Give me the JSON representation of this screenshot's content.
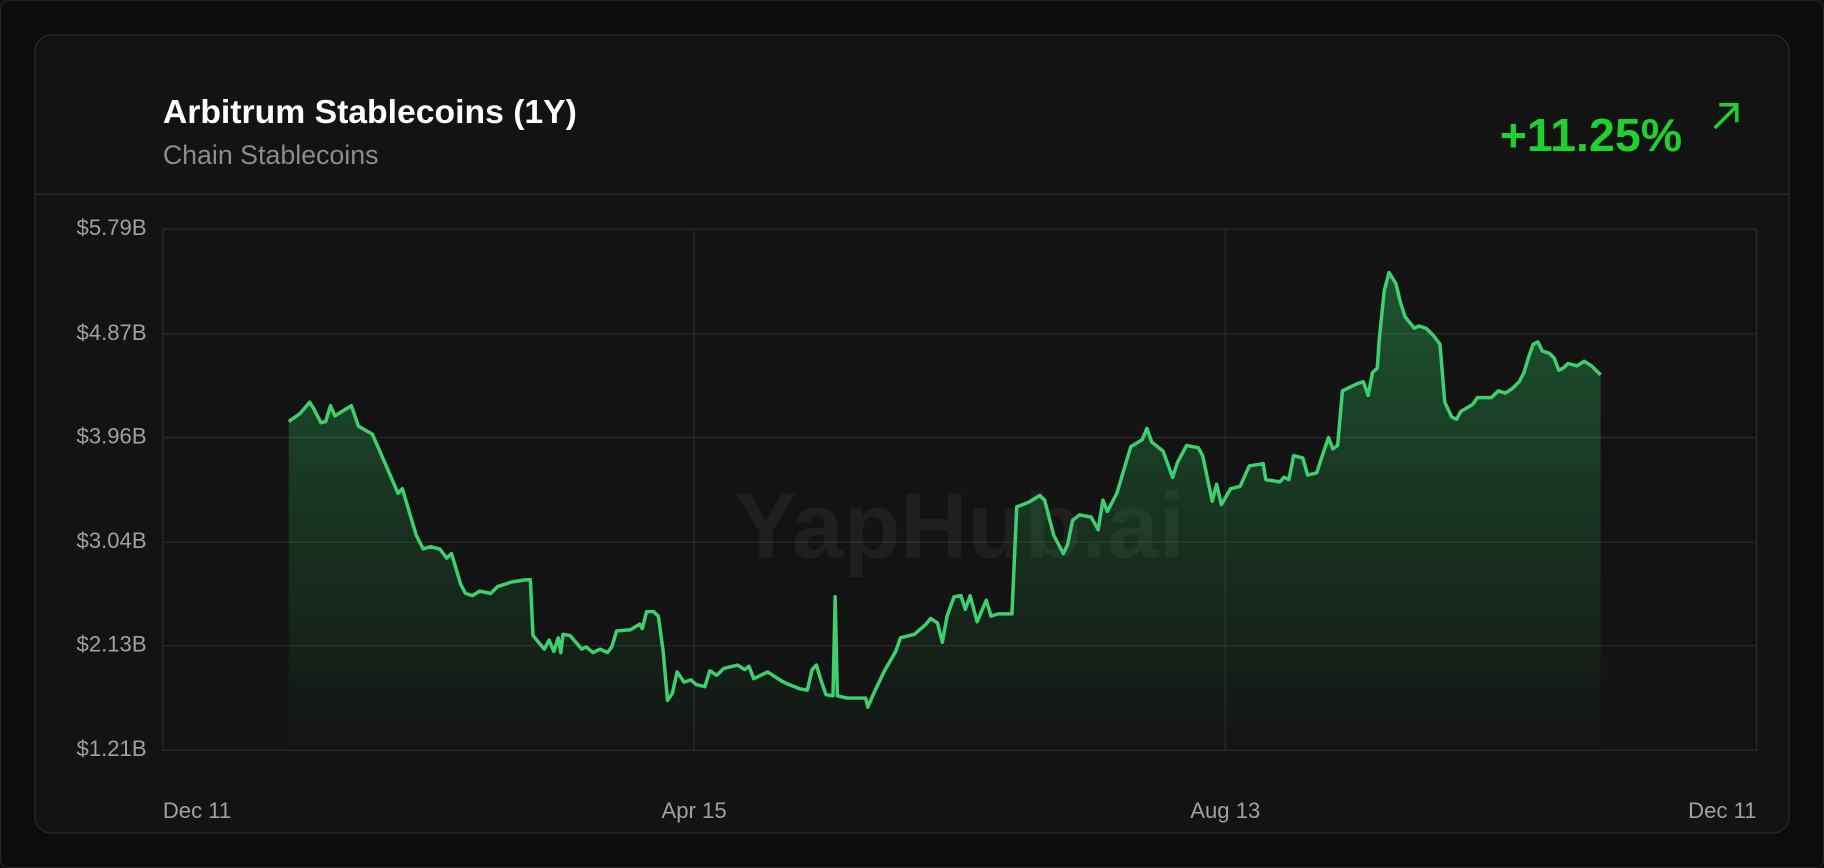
{
  "chart_data": {
    "type": "line",
    "title": "Arbitrum Stablecoins (1Y)",
    "subtitle": "Chain Stablecoins",
    "change": "+11.25%",
    "watermark": "YapHub.ai",
    "xlim": [
      0,
      366
    ],
    "xticks": [
      {
        "value": 0,
        "label": "Dec 11"
      },
      {
        "value": 122,
        "label": "Apr 15"
      },
      {
        "value": 244,
        "label": "Aug 13"
      },
      {
        "value": 366,
        "label": "Dec 11"
      }
    ],
    "ylim": [
      1.21,
      5.79
    ],
    "yticks": [
      {
        "value": 1.21,
        "label": "$1.21B"
      },
      {
        "value": 2.13,
        "label": "$2.13B"
      },
      {
        "value": 3.04,
        "label": "$3.04B"
      },
      {
        "value": 3.96,
        "label": "$3.96B"
      },
      {
        "value": 4.87,
        "label": "$4.87B"
      },
      {
        "value": 5.79,
        "label": "$5.79B"
      }
    ],
    "grid": true,
    "x": [
      28.9,
      31.5,
      33.7,
      34.7,
      36.3,
      37.4,
      38.5,
      39.5,
      43.3,
      44.9,
      48.1,
      51.3,
      54.0,
      55.0,
      58.2,
      59.8,
      61.4,
      63.6,
      65.2,
      66.3,
      68.4,
      69.5,
      71.1,
      72.7,
      75.3,
      76.9,
      80.1,
      83.4,
      84.4,
      85.0,
      87.6,
      88.7,
      89.8,
      90.8,
      91.4,
      91.9,
      93.5,
      96.2,
      97.2,
      98.8,
      100.4,
      102.1,
      103.1,
      104.2,
      107.4,
      109.5,
      110.1,
      111.1,
      112.7,
      113.8,
      114.9,
      115.9,
      117.0,
      118.1,
      119.7,
      121.3,
      122.4,
      124.5,
      125.6,
      127.2,
      128.8,
      132.0,
      133.6,
      134.6,
      135.7,
      138.9,
      142.1,
      143.7,
      146.4,
      148.0,
      149.1,
      150.1,
      151.2,
      152.3,
      153.9,
      154.4,
      154.9,
      157.1,
      161.4,
      161.9,
      163.0,
      165.6,
      168.3,
      169.4,
      172.6,
      175.3,
      176.3,
      177.9,
      179.0,
      180.1,
      181.7,
      183.3,
      184.3,
      185.4,
      187.0,
      189.1,
      190.2,
      191.8,
      195.0,
      196.1,
      198.8,
      201.4,
      202.5,
      204.6,
      206.8,
      207.8,
      208.9,
      210.5,
      213.2,
      214.8,
      215.9,
      216.9,
      219.1,
      221.2,
      222.3,
      224.9,
      226.0,
      227.1,
      229.7,
      231.9,
      233.0,
      235.1,
      237.8,
      238.8,
      241.0,
      242.0,
      243.1,
      245.2,
      247.4,
      249.5,
      252.7,
      253.3,
      256.5,
      257.5,
      258.6,
      259.7,
      261.8,
      262.9,
      265.0,
      266.1,
      267.7,
      268.7,
      269.8,
      270.9,
      274.1,
      275.7,
      276.8,
      277.8,
      278.9,
      279.4,
      280.5,
      281.6,
      283.2,
      284.2,
      285.3,
      287.4,
      288.5,
      290.1,
      291.7,
      293.3,
      294.4,
      296.0,
      297.1,
      298.1,
      300.8,
      301.9,
      305.1,
      306.7,
      308.3,
      309.9,
      311.5,
      312.6,
      313.6,
      314.7,
      315.8,
      316.8,
      318.4,
      319.5,
      320.6,
      321.6,
      322.7,
      324.8,
      326.4,
      328.1,
      330.2
    ],
    "series": [
      {
        "name": "Arbitrum Stablecoins",
        "color": "#3ecf6e",
        "values": [
          4.1,
          4.17,
          4.27,
          4.21,
          4.09,
          4.1,
          4.24,
          4.15,
          4.24,
          4.06,
          3.99,
          3.71,
          3.47,
          3.51,
          3.1,
          2.98,
          3.0,
          2.98,
          2.9,
          2.94,
          2.67,
          2.59,
          2.57,
          2.61,
          2.59,
          2.65,
          2.69,
          2.71,
          2.71,
          2.22,
          2.1,
          2.18,
          2.08,
          2.2,
          2.07,
          2.23,
          2.22,
          2.1,
          2.12,
          2.07,
          2.1,
          2.07,
          2.12,
          2.26,
          2.27,
          2.32,
          2.28,
          2.43,
          2.43,
          2.39,
          2.08,
          1.65,
          1.71,
          1.9,
          1.81,
          1.83,
          1.79,
          1.77,
          1.91,
          1.87,
          1.93,
          1.96,
          1.92,
          1.95,
          1.84,
          1.9,
          1.82,
          1.79,
          1.75,
          1.74,
          1.92,
          1.96,
          1.82,
          1.7,
          1.69,
          2.56,
          1.69,
          1.67,
          1.67,
          1.59,
          1.69,
          1.9,
          2.08,
          2.2,
          2.23,
          2.32,
          2.37,
          2.33,
          2.16,
          2.39,
          2.56,
          2.57,
          2.45,
          2.57,
          2.34,
          2.53,
          2.39,
          2.41,
          2.41,
          3.35,
          3.39,
          3.45,
          3.41,
          3.1,
          2.94,
          3.02,
          3.23,
          3.28,
          3.26,
          3.15,
          3.41,
          3.31,
          3.47,
          3.74,
          3.88,
          3.94,
          4.04,
          3.92,
          3.84,
          3.61,
          3.74,
          3.89,
          3.87,
          3.8,
          3.4,
          3.55,
          3.37,
          3.51,
          3.53,
          3.71,
          3.73,
          3.59,
          3.57,
          3.61,
          3.59,
          3.8,
          3.78,
          3.63,
          3.65,
          3.78,
          3.96,
          3.86,
          3.89,
          4.37,
          4.43,
          4.45,
          4.33,
          4.53,
          4.57,
          4.84,
          5.25,
          5.41,
          5.31,
          5.15,
          5.02,
          4.92,
          4.94,
          4.92,
          4.86,
          4.78,
          4.27,
          4.14,
          4.12,
          4.19,
          4.25,
          4.31,
          4.31,
          4.37,
          4.35,
          4.39,
          4.45,
          4.53,
          4.66,
          4.78,
          4.8,
          4.72,
          4.7,
          4.66,
          4.55,
          4.57,
          4.61,
          4.59,
          4.63,
          4.59,
          4.51
        ]
      }
    ]
  }
}
